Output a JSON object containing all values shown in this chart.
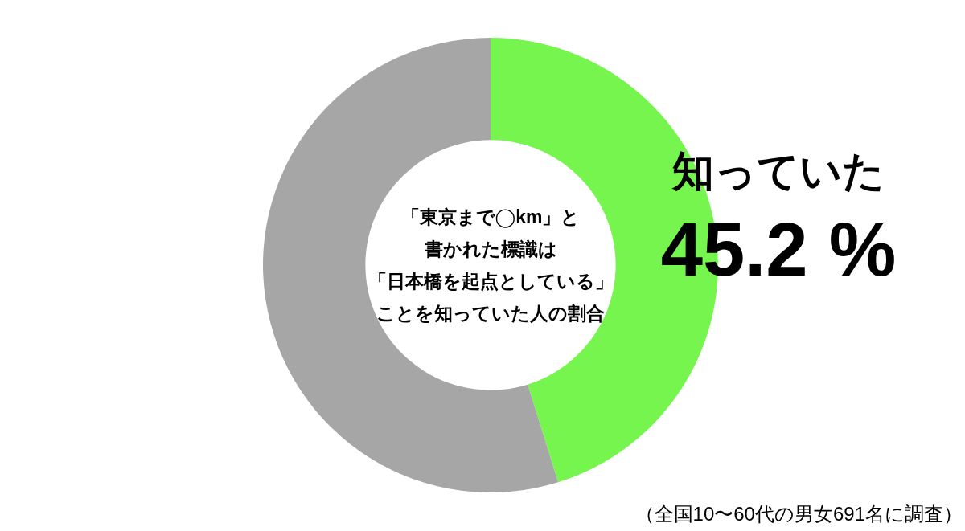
{
  "chart_data": {
    "type": "donut",
    "title": "「東京まで◯km」と書かれた標識は「日本橋を起点としている」ことを知っていた人の割合",
    "categories": [
      "知っていた",
      null
    ],
    "values": [
      45.2,
      54.8
    ],
    "colors": [
      "#76f54f",
      "#a6a6a6"
    ],
    "value_labels": [
      "45.2 %",
      null
    ],
    "annotations": [
      "（全国10〜60代の男女691名に調査）"
    ]
  }
}
